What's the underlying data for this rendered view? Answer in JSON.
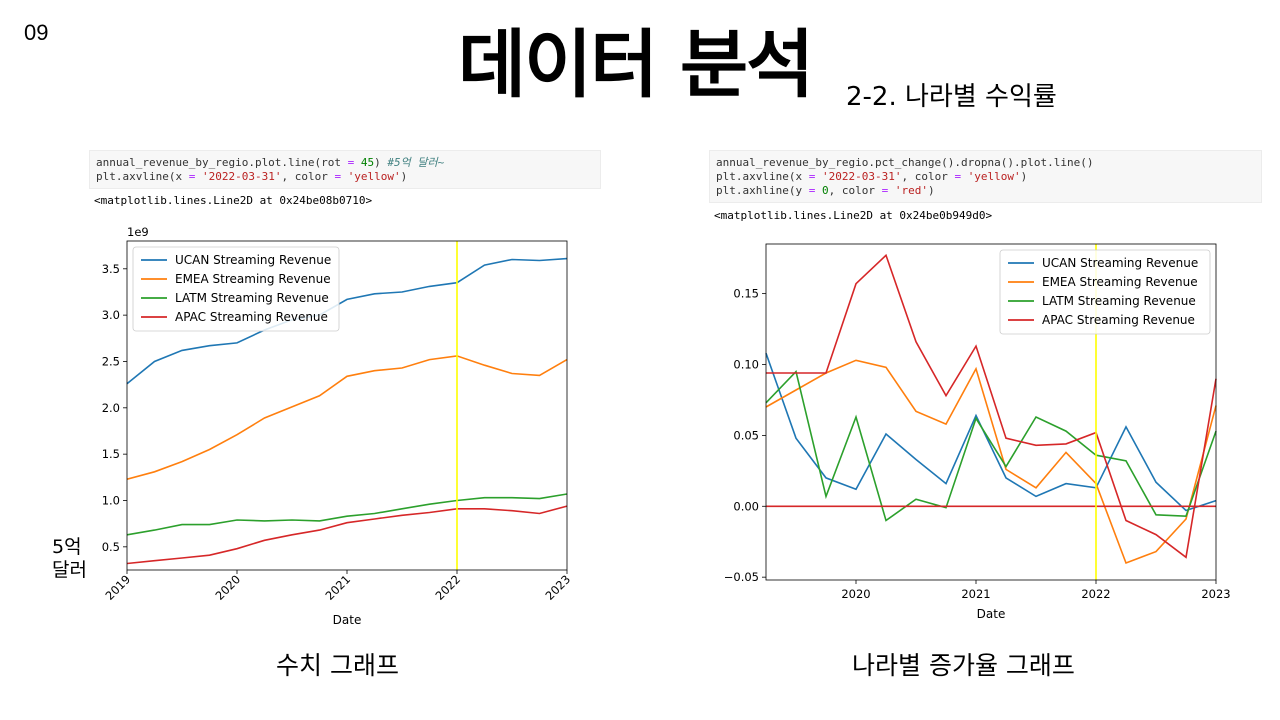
{
  "slide_number": "09",
  "title": "데이터 분석",
  "subtitle": "2-2. 나라별 수익률",
  "left": {
    "code_line1_pre": "annual_revenue_by_regio.plot.line(rot ",
    "code_line1_eq": "=",
    "code_line1_num": "45",
    "code_line1_post": ") ",
    "code_line1_comment": "#5억 달러~",
    "code_line2_pre": "plt.axvline(x ",
    "code_line2_eq": "=",
    "code_line2_str1": "'2022-03-31'",
    "code_line2_mid": ", color ",
    "code_line2_eq2": "=",
    "code_line2_str2": "'yellow'",
    "code_line2_post": ")",
    "output": "<matplotlib.lines.Line2D at 0x24be08b0710>",
    "units_label_1": "5억",
    "units_label_2": "달러",
    "caption": "수치 그래프"
  },
  "right": {
    "code_line1": "annual_revenue_by_regio.pct_change().dropna().plot.line()",
    "code_line2_pre": "plt.axvline(x ",
    "code_line2_eq": "=",
    "code_line2_str1": "'2022-03-31'",
    "code_line2_mid": ", color ",
    "code_line2_eq2": "=",
    "code_line2_str2": "'yellow'",
    "code_line2_post": ")",
    "code_line3_pre": "plt.axhline(y ",
    "code_line3_eq": "=",
    "code_line3_num": "0",
    "code_line3_mid": ", color ",
    "code_line3_eq2": "=",
    "code_line3_str": "'red'",
    "code_line3_post": ")",
    "output": "<matplotlib.lines.Line2D at 0x24be0b949d0>",
    "caption": "나라별 증가율 그래프"
  },
  "chart_data": [
    {
      "type": "line",
      "xlabel": "Date",
      "ylabel": "",
      "offset_label": "1e9",
      "x": [
        "2019-01",
        "2019-04",
        "2019-07",
        "2019-10",
        "2020-01",
        "2020-04",
        "2020-07",
        "2020-10",
        "2021-01",
        "2021-04",
        "2021-07",
        "2021-10",
        "2022-01",
        "2022-04",
        "2022-07",
        "2022-10",
        "2023-01"
      ],
      "xlim": [
        "2019-01",
        "2023-01"
      ],
      "xticks": [
        "2019",
        "2020",
        "2021",
        "2022",
        "2023"
      ],
      "ylim": [
        0.25,
        3.8
      ],
      "yticks": [
        "0.5",
        "1.0",
        "1.5",
        "2.0",
        "2.5",
        "3.0",
        "3.5"
      ],
      "legend_position": "top-left",
      "grid": false,
      "tick_rotation": 45,
      "vline": {
        "x": "2022-01",
        "color": "#ffff00"
      },
      "series": [
        {
          "name": "UCAN Streaming Revenue",
          "color": "#1f77b4",
          "values": [
            2.26,
            2.5,
            2.62,
            2.67,
            2.7,
            2.84,
            2.95,
            3.0,
            3.17,
            3.23,
            3.25,
            3.31,
            3.35,
            3.54,
            3.6,
            3.59,
            3.61
          ]
        },
        {
          "name": "EMEA Streaming Revenue",
          "color": "#ff7f0e",
          "values": [
            1.23,
            1.31,
            1.42,
            1.55,
            1.71,
            1.89,
            2.01,
            2.13,
            2.34,
            2.4,
            2.43,
            2.52,
            2.56,
            2.46,
            2.37,
            2.35,
            2.52
          ]
        },
        {
          "name": "LATM Streaming Revenue",
          "color": "#2ca02c",
          "values": [
            0.63,
            0.68,
            0.74,
            0.74,
            0.79,
            0.78,
            0.79,
            0.78,
            0.83,
            0.86,
            0.91,
            0.96,
            1.0,
            1.03,
            1.03,
            1.02,
            1.07
          ]
        },
        {
          "name": "APAC Streaming Revenue",
          "color": "#d62728",
          "values": [
            0.32,
            0.35,
            0.38,
            0.41,
            0.48,
            0.57,
            0.63,
            0.68,
            0.76,
            0.8,
            0.84,
            0.87,
            0.91,
            0.91,
            0.89,
            0.86,
            0.94
          ]
        }
      ]
    },
    {
      "type": "line",
      "xlabel": "Date",
      "ylabel": "",
      "x": [
        "2019-04",
        "2019-07",
        "2019-10",
        "2020-01",
        "2020-04",
        "2020-07",
        "2020-10",
        "2021-01",
        "2021-04",
        "2021-07",
        "2021-10",
        "2022-01",
        "2022-04",
        "2022-07",
        "2022-10",
        "2023-01"
      ],
      "xlim": [
        "2019-04",
        "2023-01"
      ],
      "xticks": [
        "2020",
        "2021",
        "2022",
        "2023"
      ],
      "ylim": [
        -0.052,
        0.185
      ],
      "yticks": [
        "−0.05",
        "0.00",
        "0.05",
        "0.10",
        "0.15"
      ],
      "legend_position": "top-right",
      "grid": false,
      "vline": {
        "x": "2022-01",
        "color": "#ffff00"
      },
      "hline": {
        "y": 0,
        "color": "#d62728"
      },
      "series": [
        {
          "name": "UCAN Streaming Revenue",
          "color": "#1f77b4",
          "values": [
            0.108,
            0.048,
            0.02,
            0.012,
            0.051,
            0.033,
            0.016,
            0.064,
            0.02,
            0.007,
            0.016,
            0.013,
            0.056,
            0.017,
            -0.003,
            0.004
          ]
        },
        {
          "name": "EMEA Streaming Revenue",
          "color": "#ff7f0e",
          "values": [
            0.07,
            0.082,
            0.094,
            0.103,
            0.098,
            0.067,
            0.058,
            0.097,
            0.026,
            0.013,
            0.038,
            0.016,
            -0.04,
            -0.032,
            -0.009,
            0.071
          ]
        },
        {
          "name": "LATM Streaming Revenue",
          "color": "#2ca02c",
          "values": [
            0.073,
            0.095,
            0.007,
            0.063,
            -0.01,
            0.005,
            -0.001,
            0.062,
            0.028,
            0.063,
            0.053,
            0.036,
            0.032,
            -0.006,
            -0.007,
            0.053
          ]
        },
        {
          "name": "APAC Streaming Revenue",
          "color": "#d62728",
          "values": [
            0.094,
            0.094,
            0.094,
            0.157,
            0.177,
            0.116,
            0.078,
            0.113,
            0.048,
            0.043,
            0.044,
            0.052,
            -0.01,
            -0.02,
            -0.036,
            0.09
          ]
        }
      ]
    }
  ]
}
